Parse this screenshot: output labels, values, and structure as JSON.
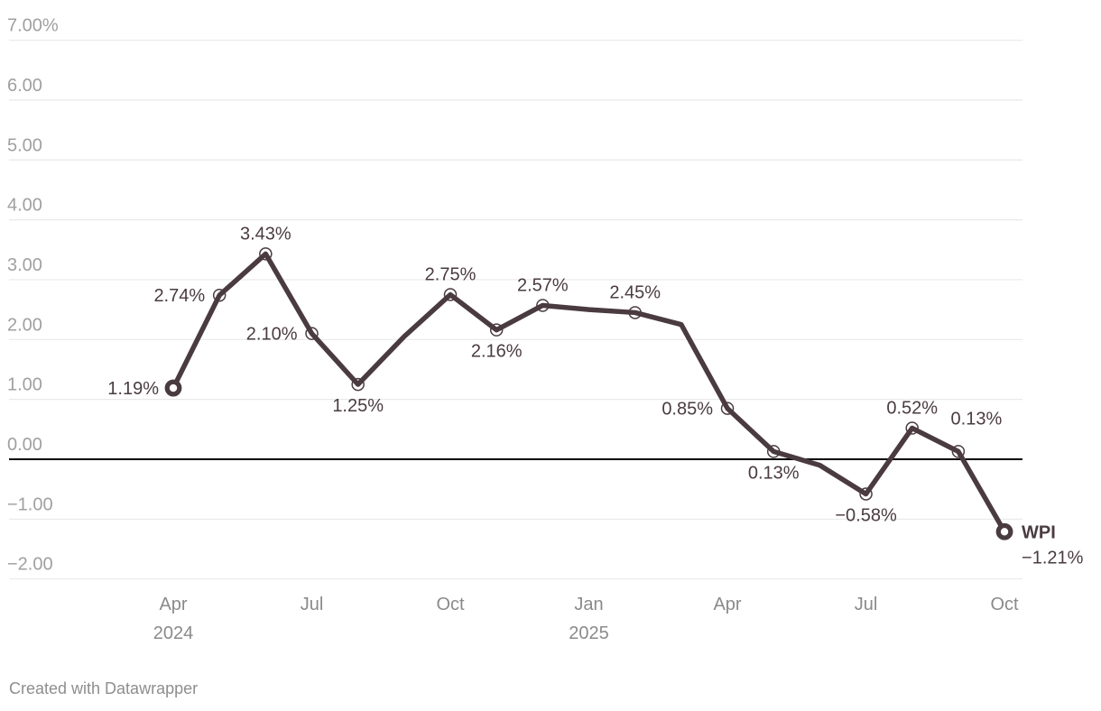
{
  "footer": {
    "credit": "Created with Datawrapper"
  },
  "chart_data": {
    "type": "line",
    "title": "",
    "series_name": "WPI",
    "unit": "percent",
    "x": [
      "Apr 2024",
      "May 2024",
      "Jun 2024",
      "Jul 2024",
      "Aug 2024",
      "Sep 2024",
      "Oct 2024",
      "Nov 2024",
      "Dec 2024",
      "Jan 2025",
      "Feb 2025",
      "Mar 2025",
      "Apr 2025",
      "May 2025",
      "Jun 2025",
      "Jul 2025",
      "Aug 2025",
      "Sep 2025",
      "Oct 2025"
    ],
    "points": [
      {
        "value": 1.19,
        "label": "1.19%",
        "placement": "left"
      },
      {
        "value": 2.74,
        "label": "2.74%",
        "placement": "left"
      },
      {
        "value": 3.43,
        "label": "3.43%",
        "placement": "above"
      },
      {
        "value": 2.1,
        "label": "2.10%",
        "placement": "left"
      },
      {
        "value": 1.25,
        "label": "1.25%",
        "placement": "below"
      },
      {
        "value": 2.05,
        "label": null,
        "placement": null
      },
      {
        "value": 2.75,
        "label": "2.75%",
        "placement": "above"
      },
      {
        "value": 2.16,
        "label": "2.16%",
        "placement": "below"
      },
      {
        "value": 2.57,
        "label": "2.57%",
        "placement": "above"
      },
      {
        "value": 2.5,
        "label": null,
        "placement": null
      },
      {
        "value": 2.45,
        "label": "2.45%",
        "placement": "above"
      },
      {
        "value": 2.25,
        "label": null,
        "placement": null
      },
      {
        "value": 0.85,
        "label": "0.85%",
        "placement": "left"
      },
      {
        "value": 0.13,
        "label": "0.13%",
        "placement": "below"
      },
      {
        "value": -0.1,
        "label": null,
        "placement": null
      },
      {
        "value": -0.58,
        "label": "−0.58%",
        "placement": "below"
      },
      {
        "value": 0.52,
        "label": "0.52%",
        "placement": "above"
      },
      {
        "value": 0.13,
        "label": "0.13%",
        "placement": "above-right"
      },
      {
        "value": -1.21,
        "label": null,
        "placement": "end"
      }
    ],
    "end_label": {
      "name": "WPI",
      "value": "−1.21%"
    },
    "axes": {
      "ylim": [
        -2.4,
        7.1
      ],
      "grid": true,
      "y_ticks": [
        {
          "value": 7,
          "label": "7.00%"
        },
        {
          "value": 6,
          "label": "6.00"
        },
        {
          "value": 5,
          "label": "5.00"
        },
        {
          "value": 4,
          "label": "4.00"
        },
        {
          "value": 3,
          "label": "3.00"
        },
        {
          "value": 2,
          "label": "2.00"
        },
        {
          "value": 1,
          "label": "1.00"
        },
        {
          "value": 0,
          "label": "0.00"
        },
        {
          "value": -1,
          "label": "−1.00"
        },
        {
          "value": -2,
          "label": "−2.00"
        }
      ],
      "x_ticks": [
        {
          "index": 0,
          "month": "Apr",
          "year": "2024"
        },
        {
          "index": 3,
          "month": "Jul",
          "year": null
        },
        {
          "index": 6,
          "month": "Oct",
          "year": null
        },
        {
          "index": 9,
          "month": "Jan",
          "year": "2025"
        },
        {
          "index": 12,
          "month": "Apr",
          "year": null
        },
        {
          "index": 15,
          "month": "Jul",
          "year": null
        },
        {
          "index": 18,
          "month": "Oct",
          "year": null
        }
      ]
    },
    "colors": {
      "line": "#4a3b41",
      "point_label": "#4a3b41",
      "marker_fill": "#ffffff",
      "grid": "#e9e9e9",
      "zero_line": "#000000",
      "y_tick_text": "#a0a0a0",
      "x_tick_text": "#8a8a8a",
      "credit_text": "#8e8e8e"
    }
  }
}
